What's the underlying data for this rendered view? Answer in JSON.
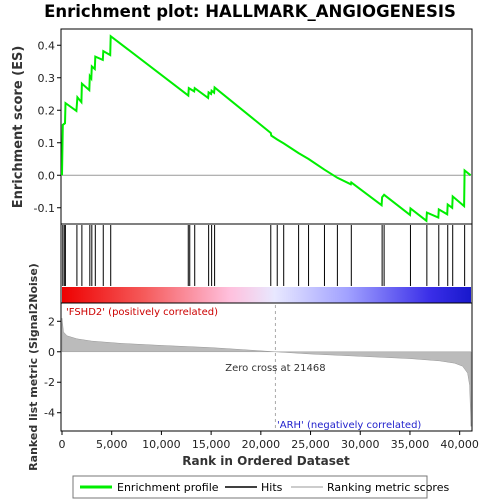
{
  "chart_data": {
    "title": "Enrichment plot: HALLMARK_ANGIOGENESIS",
    "type": "line",
    "x_range": [
      0,
      41140
    ],
    "x_ticks": [
      0,
      5000,
      10000,
      15000,
      20000,
      25000,
      30000,
      35000,
      40000
    ],
    "x_tick_labels": [
      "0",
      "5,000",
      "10,000",
      "15,000",
      "20,000",
      "25,000",
      "30,000",
      "35,000",
      "40,000"
    ],
    "xlabel": "Rank in Ordered Dataset",
    "es_panel": {
      "ylabel": "Enrichment score (ES)",
      "ylim": [
        -0.15,
        0.45
      ],
      "y_ticks": [
        -0.1,
        0.0,
        0.1,
        0.2,
        0.3,
        0.4
      ],
      "y_tick_labels": [
        "-0.1",
        "0.0",
        "0.1",
        "0.2",
        "0.3",
        "0.4"
      ],
      "line_color": "#00ee00",
      "profile": [
        [
          0,
          0
        ],
        [
          80,
          0.155
        ],
        [
          300,
          0.16
        ],
        [
          350,
          0.222
        ],
        [
          1450,
          0.198
        ],
        [
          1550,
          0.24
        ],
        [
          1950,
          0.225
        ],
        [
          2000,
          0.282
        ],
        [
          2750,
          0.262
        ],
        [
          2800,
          0.305
        ],
        [
          2950,
          0.298
        ],
        [
          3000,
          0.335
        ],
        [
          3300,
          0.327
        ],
        [
          3350,
          0.365
        ],
        [
          4100,
          0.355
        ],
        [
          4150,
          0.382
        ],
        [
          4850,
          0.37
        ],
        [
          4900,
          0.428
        ],
        [
          12700,
          0.245
        ],
        [
          12750,
          0.268
        ],
        [
          13300,
          0.258
        ],
        [
          13350,
          0.268
        ],
        [
          14700,
          0.238
        ],
        [
          14750,
          0.255
        ],
        [
          15000,
          0.25
        ],
        [
          15050,
          0.26
        ],
        [
          15300,
          0.254
        ],
        [
          15350,
          0.27
        ],
        [
          21000,
          0.13
        ],
        [
          21050,
          0.122
        ],
        [
          21650,
          0.11
        ],
        [
          22300,
          0.098
        ],
        [
          23800,
          0.068
        ],
        [
          24800,
          0.05
        ],
        [
          26400,
          0.017
        ],
        [
          27700,
          -0.008
        ],
        [
          29050,
          -0.028
        ],
        [
          29100,
          -0.022
        ],
        [
          32150,
          -0.092
        ],
        [
          32200,
          -0.068
        ],
        [
          32400,
          -0.06
        ],
        [
          35000,
          -0.122
        ],
        [
          35050,
          -0.102
        ],
        [
          36650,
          -0.14
        ],
        [
          36700,
          -0.115
        ],
        [
          37850,
          -0.13
        ],
        [
          37900,
          -0.105
        ],
        [
          38750,
          -0.12
        ],
        [
          38800,
          -0.09
        ],
        [
          39250,
          -0.1
        ],
        [
          39300,
          -0.065
        ],
        [
          40450,
          -0.095
        ],
        [
          40500,
          0.015
        ],
        [
          41100,
          0.0
        ]
      ]
    },
    "hits": [
      80,
      230,
      340,
      1500,
      2000,
      2800,
      3000,
      3350,
      4150,
      4900,
      12700,
      12850,
      13350,
      14750,
      15050,
      15350,
      21000,
      21650,
      22300,
      23800,
      24800,
      26400,
      27700,
      29100,
      32200,
      32400,
      35050,
      36700,
      37900,
      38800,
      39300,
      40500
    ],
    "rank_metric": {
      "ylabel": "Ranked list metric (Signal2Noise)",
      "ylim": [
        -5.2,
        3.2
      ],
      "y_ticks": [
        -4,
        -2,
        0,
        2
      ],
      "y_tick_labels": [
        "-4",
        "-2",
        "0",
        "2"
      ],
      "zero_cross": 21468,
      "zero_cross_label": "Zero cross at 21468",
      "profile": [
        [
          0,
          2.2
        ],
        [
          150,
          1.3
        ],
        [
          500,
          1.05
        ],
        [
          1500,
          0.85
        ],
        [
          3000,
          0.7
        ],
        [
          6000,
          0.55
        ],
        [
          10000,
          0.42
        ],
        [
          15000,
          0.27
        ],
        [
          18000,
          0.15
        ],
        [
          21468,
          0.0
        ],
        [
          25000,
          -0.15
        ],
        [
          30000,
          -0.3
        ],
        [
          35000,
          -0.45
        ],
        [
          38000,
          -0.6
        ],
        [
          39500,
          -0.75
        ],
        [
          40300,
          -0.95
        ],
        [
          40800,
          -1.4
        ],
        [
          41000,
          -2.2
        ],
        [
          41140,
          -4.9
        ]
      ]
    },
    "annotations": {
      "positive": "'FSHD2' (positively correlated)",
      "negative": "'ARH' (negatively correlated)",
      "positive_color": "#cc0000",
      "negative_color": "#2222cc"
    },
    "legend": {
      "position": "bottom",
      "items": [
        {
          "label": "Enrichment profile",
          "color": "#00ee00"
        },
        {
          "label": "Hits",
          "color": "#000000"
        },
        {
          "label": "Ranking metric scores",
          "color": "#bbbbbb"
        }
      ]
    }
  }
}
